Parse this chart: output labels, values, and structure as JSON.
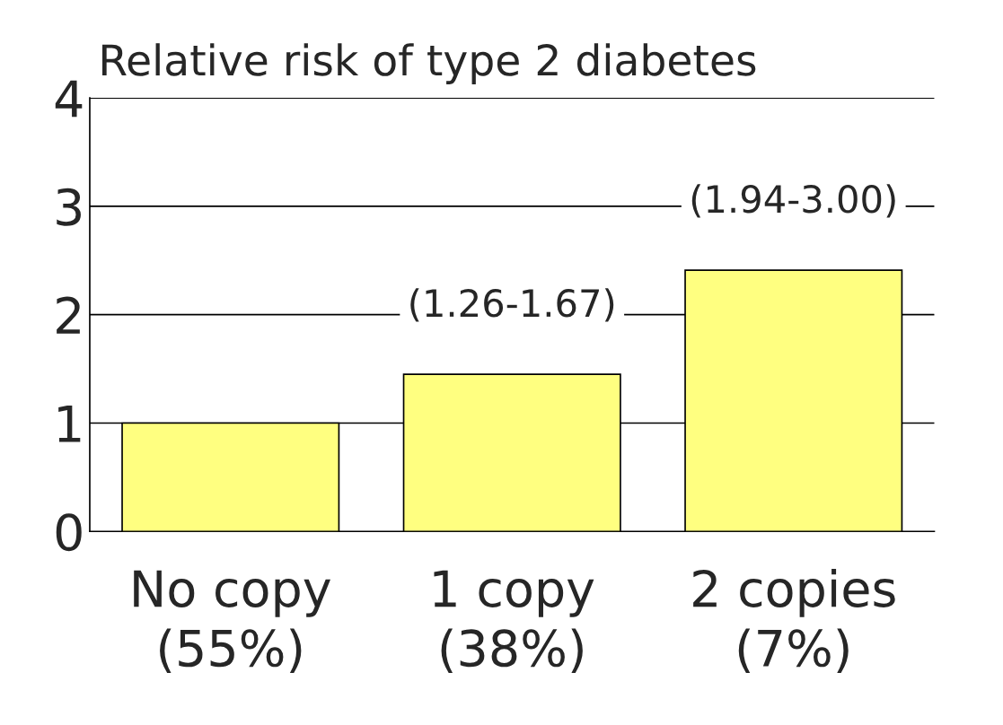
{
  "chart_data": {
    "type": "bar",
    "title": "Relative risk of type 2 diabetes",
    "categories": [
      "No copy\n(55%)",
      "1 copy\n(38%)",
      "2 copies\n(7%)"
    ],
    "values": [
      1.0,
      1.45,
      2.41
    ],
    "value_labels": [
      null,
      "(1.26-1.67)",
      "(1.94-3.00)"
    ],
    "color": "#ffff80",
    "ylim": [
      0,
      4
    ],
    "yticks": [
      0,
      1,
      2,
      3,
      4
    ],
    "grid": "y",
    "legend": false
  }
}
